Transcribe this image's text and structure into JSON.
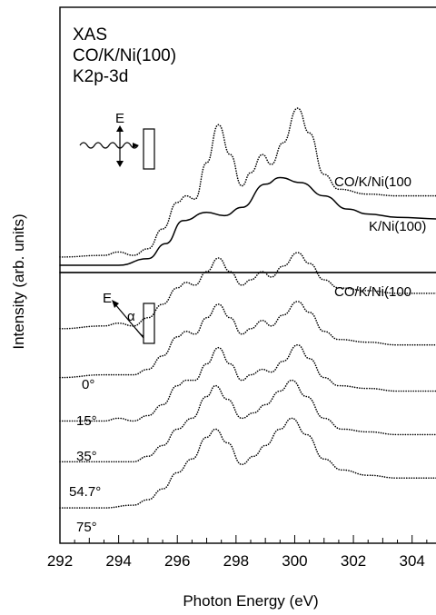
{
  "chart_data": [
    {
      "type": "line",
      "panel": "top",
      "title_lines": [
        "XAS",
        "CO/K/Ni(100)",
        "K2p-3d"
      ],
      "xlabel": "Photon Energy (eV)",
      "ylabel": "Intensity (arb. units)",
      "xlim": [
        292,
        305
      ],
      "ylim": [
        0,
        1
      ],
      "grid": false,
      "inset_label": "E",
      "series": [
        {
          "name": "CO/K/Ni(100",
          "style": "dotted",
          "x": [
            292,
            293.5,
            294,
            294.5,
            295,
            295.5,
            296,
            296.3,
            296.6,
            297,
            297.4,
            297.8,
            298.2,
            298.5,
            298.9,
            299.2,
            299.6,
            300.1,
            300.5,
            301,
            301.5,
            302.5,
            303.5,
            305
          ],
          "y": [
            0.05,
            0.06,
            0.08,
            0.06,
            0.1,
            0.22,
            0.38,
            0.42,
            0.4,
            0.62,
            0.85,
            0.67,
            0.48,
            0.56,
            0.67,
            0.61,
            0.74,
            0.95,
            0.8,
            0.55,
            0.46,
            0.43,
            0.42,
            0.42
          ]
        },
        {
          "name": "K/Ni(100)",
          "style": "solid",
          "x": [
            292,
            294,
            295,
            295.6,
            296.2,
            297,
            297.6,
            298.2,
            299,
            299.5,
            300.2,
            301,
            301.8,
            302.5,
            303.5,
            305
          ],
          "y": [
            0.0,
            0.0,
            0.04,
            0.13,
            0.27,
            0.32,
            0.3,
            0.35,
            0.49,
            0.53,
            0.5,
            0.42,
            0.34,
            0.31,
            0.29,
            0.28
          ]
        }
      ]
    },
    {
      "type": "line",
      "panel": "bottom",
      "xlabel": "Photon Energy (eV)",
      "ylabel": "Intensity (arb. units)",
      "xlim": [
        292,
        305
      ],
      "ylim": [
        0,
        1
      ],
      "grid": false,
      "inset_label": "E",
      "angle_symbol": "α",
      "xticks": [
        292,
        294,
        296,
        298,
        300,
        302,
        304
      ],
      "series_label": "CO/K/Ni(100",
      "series": [
        {
          "name": "0°",
          "style": "dotted",
          "x": [
            292,
            293.5,
            294,
            294.5,
            295,
            295.5,
            296,
            296.3,
            296.6,
            297,
            297.4,
            297.8,
            298.2,
            298.5,
            298.9,
            299.2,
            299.6,
            300.1,
            300.5,
            301,
            301.5,
            302.5,
            303.5,
            305
          ],
          "y": [
            0.78,
            0.79,
            0.8,
            0.79,
            0.82,
            0.87,
            0.93,
            0.95,
            0.94,
            0.99,
            1.04,
            0.99,
            0.94,
            0.96,
            0.99,
            0.97,
            1.01,
            1.06,
            1.02,
            0.96,
            0.93,
            0.92,
            0.91,
            0.91
          ]
        },
        {
          "name": "15°",
          "style": "dotted",
          "x": [
            292,
            293.5,
            294,
            294.5,
            295,
            295.5,
            296,
            296.3,
            296.6,
            297,
            297.4,
            297.8,
            298.2,
            298.5,
            298.9,
            299.2,
            299.6,
            300.1,
            300.5,
            301,
            301.5,
            302.5,
            303.5,
            305
          ],
          "y": [
            0.6,
            0.61,
            0.61,
            0.61,
            0.63,
            0.68,
            0.75,
            0.77,
            0.76,
            0.82,
            0.87,
            0.82,
            0.76,
            0.78,
            0.81,
            0.79,
            0.83,
            0.88,
            0.84,
            0.77,
            0.74,
            0.73,
            0.72,
            0.72
          ]
        },
        {
          "name": "35°",
          "style": "dotted",
          "x": [
            292,
            293.5,
            294,
            294.5,
            295,
            295.5,
            296,
            296.3,
            296.6,
            297,
            297.4,
            297.8,
            298.2,
            298.5,
            298.9,
            299.2,
            299.6,
            300.1,
            300.5,
            301,
            301.5,
            302.5,
            303.5,
            305
          ],
          "y": [
            0.44,
            0.44,
            0.45,
            0.44,
            0.46,
            0.5,
            0.57,
            0.59,
            0.59,
            0.65,
            0.71,
            0.65,
            0.59,
            0.61,
            0.63,
            0.62,
            0.66,
            0.72,
            0.67,
            0.6,
            0.57,
            0.56,
            0.55,
            0.55
          ]
        },
        {
          "name": "54.7°",
          "style": "dotted",
          "x": [
            292,
            293.5,
            294.5,
            295,
            295.5,
            296,
            296.5,
            297,
            297.3,
            297.7,
            298.2,
            298.6,
            299,
            299.5,
            299.9,
            300.4,
            301,
            301.6,
            302.5,
            303.5,
            305
          ],
          "y": [
            0.29,
            0.29,
            0.29,
            0.31,
            0.35,
            0.41,
            0.45,
            0.53,
            0.57,
            0.52,
            0.45,
            0.47,
            0.5,
            0.55,
            0.59,
            0.53,
            0.45,
            0.41,
            0.4,
            0.39,
            0.39
          ]
        },
        {
          "name": "75°",
          "style": "dotted",
          "x": [
            292,
            293.5,
            294.5,
            295,
            295.5,
            296,
            296.5,
            297,
            297.3,
            297.7,
            298.2,
            298.6,
            299,
            299.5,
            299.9,
            300.4,
            301,
            301.6,
            302.5,
            303.5,
            305
          ],
          "y": [
            0.12,
            0.12,
            0.13,
            0.15,
            0.19,
            0.25,
            0.3,
            0.38,
            0.41,
            0.36,
            0.28,
            0.31,
            0.35,
            0.41,
            0.45,
            0.39,
            0.3,
            0.26,
            0.24,
            0.23,
            0.23
          ]
        }
      ]
    }
  ]
}
